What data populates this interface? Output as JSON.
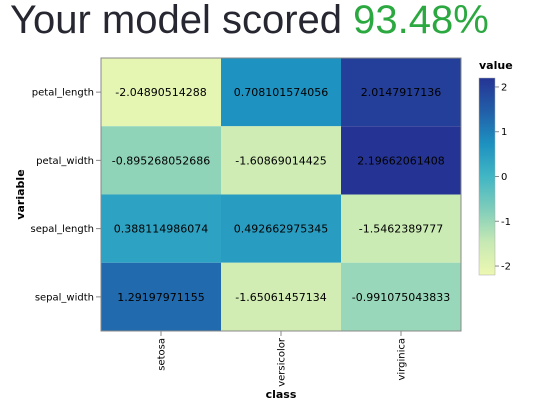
{
  "header": {
    "prefix": "Your model scored ",
    "score": "93.48%"
  },
  "chart_data": {
    "type": "heatmap",
    "xlabel": "class",
    "ylabel": "variable",
    "x": [
      "setosa",
      "versicolor",
      "virginica"
    ],
    "y": [
      "petal_length",
      "petal_width",
      "sepal_length",
      "sepal_width"
    ],
    "values": [
      [
        -2.04890514288,
        0.708101574056,
        2.0147917136
      ],
      [
        -0.895268052686,
        -1.60869014425,
        2.19662061408
      ],
      [
        0.388114986074,
        0.492662975345,
        -1.5462389777
      ],
      [
        1.29197971155,
        -1.65061457134,
        -0.991075043833
      ]
    ],
    "value_labels": [
      [
        "-2.04890514288",
        "0.708101574056",
        "2.0147917136"
      ],
      [
        "-0.895268052686",
        "-1.60869014425",
        "2.19662061408"
      ],
      [
        "0.388114986074",
        "0.492662975345",
        "-1.5462389777"
      ],
      [
        "1.29197971155",
        "-1.65061457134",
        "-0.991075043833"
      ]
    ],
    "legend": {
      "title": "value",
      "placement": "right",
      "domain": [
        -2.2,
        2.2
      ],
      "ticks": [
        2,
        1,
        0,
        -1,
        -2
      ],
      "tick_labels": [
        "2",
        "1",
        "0",
        "-1",
        "-2"
      ]
    },
    "colorscheme": "yellowgreenblue",
    "colors": {
      "stops": [
        "#edf8b1",
        "#c7e9b4",
        "#7fcdbb",
        "#41b6c4",
        "#1d91c0",
        "#225ea8",
        "#253494"
      ]
    }
  }
}
